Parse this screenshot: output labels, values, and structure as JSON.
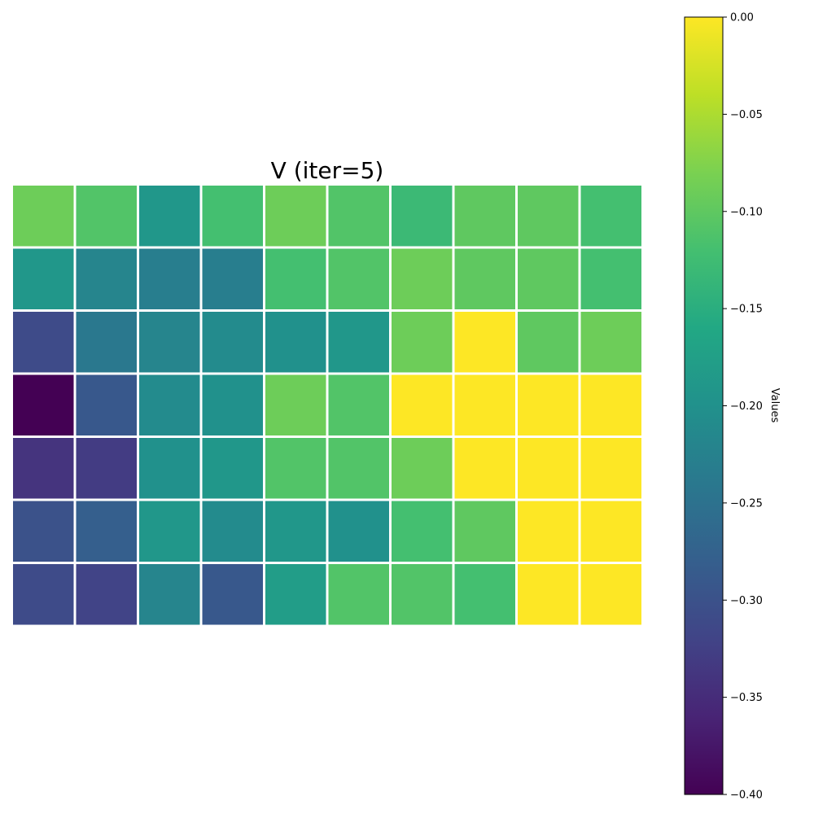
{
  "chart_data": {
    "type": "heatmap",
    "title": "V (iter=5)",
    "rows": 7,
    "cols": 10,
    "values": [
      [
        -0.09,
        -0.11,
        -0.19,
        -0.12,
        -0.09,
        -0.11,
        -0.13,
        -0.1,
        -0.1,
        -0.12
      ],
      [
        -0.19,
        -0.22,
        -0.23,
        -0.23,
        -0.12,
        -0.11,
        -0.09,
        -0.1,
        -0.1,
        -0.12
      ],
      [
        -0.31,
        -0.24,
        -0.22,
        -0.21,
        -0.2,
        -0.19,
        -0.09,
        0.0,
        -0.1,
        -0.09
      ],
      [
        -0.4,
        -0.29,
        -0.21,
        -0.2,
        -0.09,
        -0.11,
        0.0,
        0.0,
        0.0,
        0.0
      ],
      [
        -0.34,
        -0.33,
        -0.2,
        -0.19,
        -0.11,
        -0.11,
        -0.09,
        0.0,
        0.0,
        0.0
      ],
      [
        -0.3,
        -0.28,
        -0.19,
        -0.21,
        -0.19,
        -0.2,
        -0.12,
        -0.1,
        0.0,
        0.0
      ],
      [
        -0.31,
        -0.32,
        -0.22,
        -0.29,
        -0.18,
        -0.11,
        -0.11,
        -0.12,
        0.0,
        0.0
      ]
    ],
    "colormap": "viridis",
    "colorbar": {
      "label": "Values",
      "range": [
        -0.4,
        0.0
      ],
      "ticks": [
        0.0,
        -0.05,
        -0.1,
        -0.15,
        -0.2,
        -0.25,
        -0.3,
        -0.35,
        -0.4
      ],
      "tick_labels": [
        "0.00",
        "−0.05",
        "−0.10",
        "−0.15",
        "−0.20",
        "−0.25",
        "−0.30",
        "−0.35",
        "−0.40"
      ]
    },
    "grid_line_color": "#ffffff"
  }
}
